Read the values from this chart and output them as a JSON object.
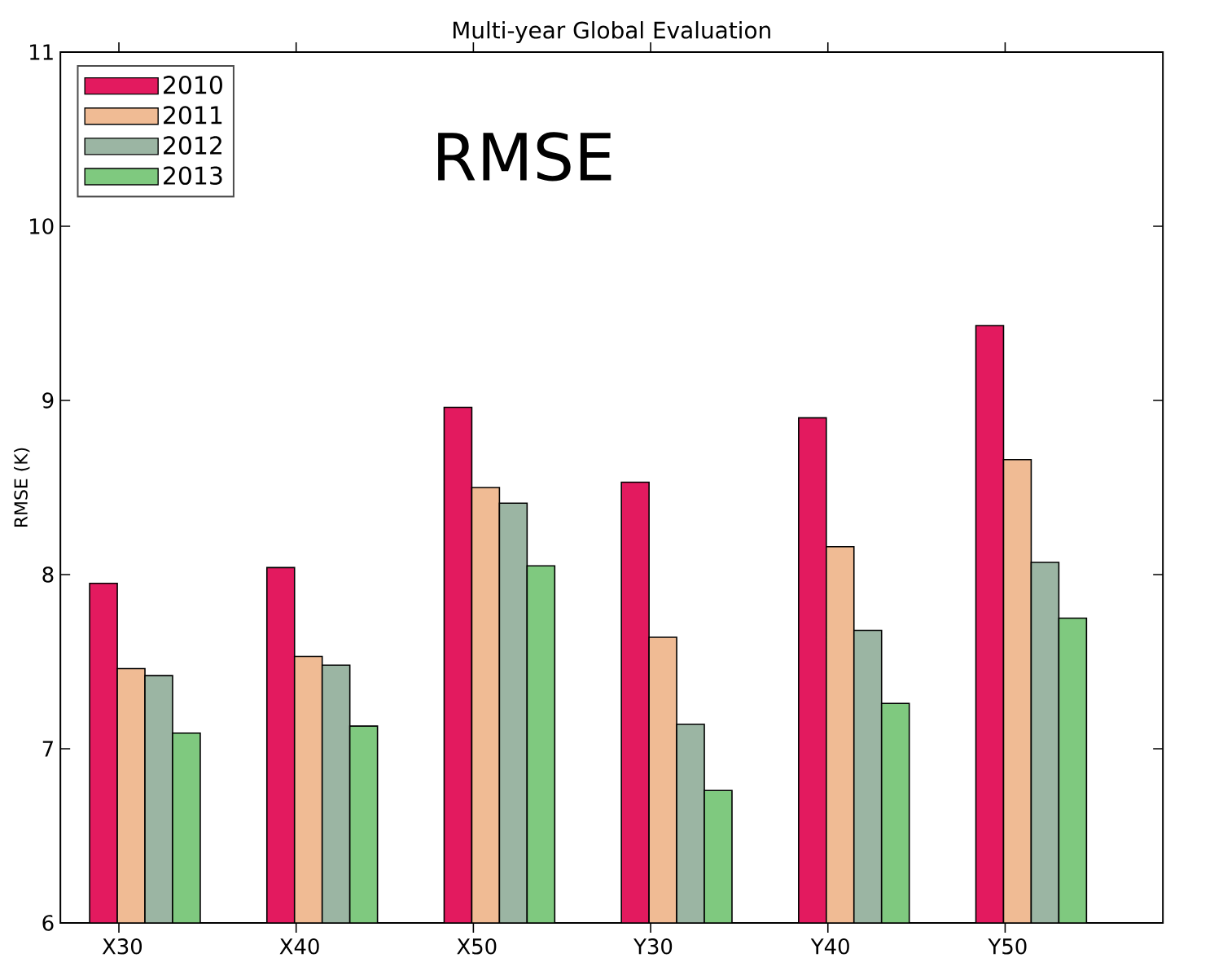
{
  "chart_data": {
    "type": "bar",
    "title": "Multi-year Global Evaluation",
    "ylabel": "RMSE (K)",
    "annotations": [
      "RMSE"
    ],
    "categories": [
      "X30",
      "X40",
      "X50",
      "Y30",
      "Y40",
      "Y50"
    ],
    "series": [
      {
        "name": "2010",
        "color": "#e31a5f",
        "values": [
          7.95,
          8.04,
          8.96,
          8.53,
          8.9,
          9.43
        ]
      },
      {
        "name": "2011",
        "color": "#f0bb94",
        "values": [
          7.46,
          7.53,
          8.5,
          7.64,
          8.16,
          8.66
        ]
      },
      {
        "name": "2012",
        "color": "#9bb5a3",
        "values": [
          7.42,
          7.48,
          8.41,
          7.14,
          7.68,
          8.07
        ]
      },
      {
        "name": "2013",
        "color": "#7fc97f",
        "values": [
          7.09,
          7.13,
          8.05,
          6.76,
          7.26,
          7.75
        ]
      }
    ],
    "ylim": [
      6,
      11
    ],
    "yticks": [
      6,
      7,
      8,
      9,
      10,
      11
    ],
    "legend": "top left",
    "grid": false
  }
}
